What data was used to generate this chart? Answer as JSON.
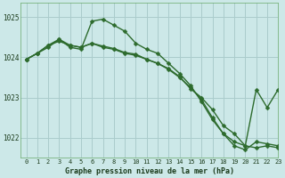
{
  "bg_color": "#cce8e8",
  "grid_color": "#aacccc",
  "line_color": "#2d6b2d",
  "marker_color": "#2d6b2d",
  "xlabel": "Graphe pression niveau de la mer (hPa)",
  "xlim": [
    -0.5,
    23
  ],
  "ylim": [
    1021.5,
    1025.35
  ],
  "yticks": [
    1022,
    1023,
    1024,
    1025
  ],
  "xticks": [
    0,
    1,
    2,
    3,
    4,
    5,
    6,
    7,
    8,
    9,
    10,
    11,
    12,
    13,
    14,
    15,
    16,
    17,
    18,
    19,
    20,
    21,
    22,
    23
  ],
  "series1": [
    1023.95,
    1024.1,
    1024.25,
    1024.45,
    1024.25,
    1024.2,
    1024.9,
    1024.95,
    1024.8,
    1024.65,
    1024.35,
    1024.2,
    1024.1,
    1023.85,
    1023.6,
    1023.3,
    1022.9,
    1022.45,
    1022.1,
    1021.9,
    1021.8,
    1021.75,
    1021.8,
    1021.75
  ],
  "series2": [
    1023.95,
    1024.1,
    1024.3,
    1024.45,
    1024.3,
    1024.25,
    1024.35,
    1024.25,
    1024.2,
    1024.1,
    1024.05,
    1023.95,
    1023.85,
    1023.7,
    1023.5,
    1023.25,
    1022.95,
    1022.5,
    1022.1,
    1021.8,
    1021.7,
    1021.9,
    1021.85,
    1021.8
  ],
  "series3": [
    1023.95,
    1024.1,
    1024.3,
    1024.4,
    1024.3,
    1024.25,
    1024.35,
    1024.28,
    1024.22,
    1024.12,
    1024.08,
    1023.95,
    1023.85,
    1023.72,
    1023.52,
    1023.22,
    1023.0,
    1022.7,
    1022.3,
    1022.1,
    1021.8,
    1023.2,
    1022.75,
    1023.2
  ]
}
